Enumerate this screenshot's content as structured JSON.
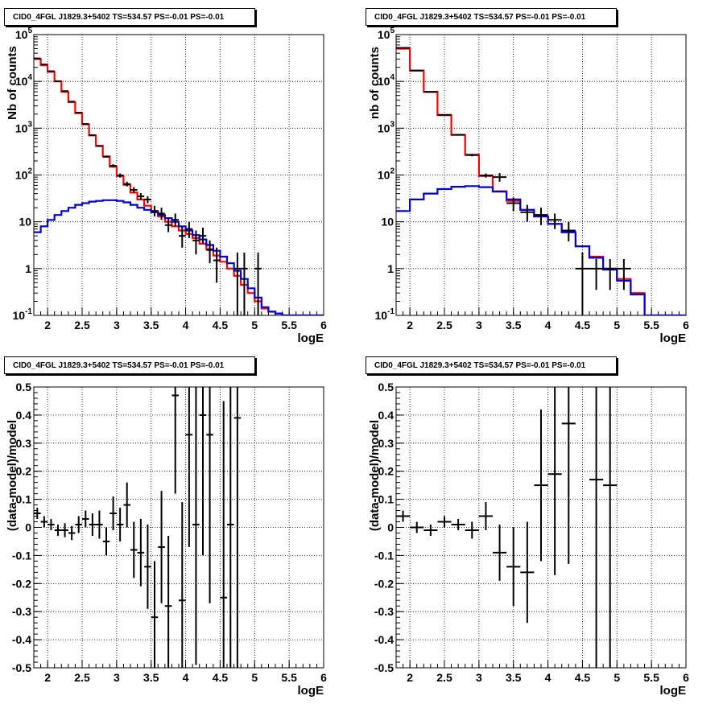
{
  "chart_data": [
    {
      "type": "line",
      "title": "CID0_4FGL J1829.3+5402 TS=534.57 PS=-0.01 PS=-0.01",
      "xlabel": "logE",
      "ylabel": "Nb of counts",
      "xlim": [
        1.8,
        6.0
      ],
      "ylim": [
        0.1,
        100000
      ],
      "yscale": "log",
      "grid": true,
      "xticks": [
        "2",
        "2.5",
        "3",
        "3.5",
        "4",
        "4.5",
        "5",
        "5.5",
        "6"
      ],
      "yticks": [
        "10^-1",
        "1",
        "10",
        "10^2",
        "10^3",
        "10^4",
        "10^5"
      ],
      "bin_width": 0.1,
      "series": [
        {
          "color": "#ff0000",
          "style": "step",
          "x": [
            1.85,
            1.95,
            2.05,
            2.15,
            2.25,
            2.35,
            2.45,
            2.55,
            2.65,
            2.75,
            2.85,
            2.95,
            3.05,
            3.15,
            3.25,
            3.35,
            3.45,
            3.55,
            3.65,
            3.75,
            3.85,
            3.95,
            4.05,
            4.15,
            4.25,
            4.35,
            4.45,
            4.55,
            4.65,
            4.75,
            4.85,
            4.95,
            5.05,
            5.15,
            5.25,
            5.35,
            5.45,
            5.55,
            5.65,
            5.75,
            5.85,
            5.95
          ],
          "y": [
            30000,
            22000,
            16000,
            10000,
            6000,
            3600,
            2100,
            1200,
            700,
            420,
            250,
            150,
            95,
            62,
            42,
            30,
            22,
            17,
            13,
            10,
            8,
            6.5,
            5.5,
            4.5,
            3.4,
            2.6,
            1.9,
            1.4,
            1.0,
            0.7,
            0.45,
            0.3,
            0.2,
            0.14,
            0.12,
            0.11,
            0.1,
            0.1,
            0.1,
            0.1,
            0.1,
            0.1
          ]
        },
        {
          "color": "#0000cc",
          "style": "step",
          "x": [
            1.85,
            1.95,
            2.05,
            2.15,
            2.25,
            2.35,
            2.45,
            2.55,
            2.65,
            2.75,
            2.85,
            2.95,
            3.05,
            3.15,
            3.25,
            3.35,
            3.45,
            3.55,
            3.65,
            3.75,
            3.85,
            3.95,
            4.05,
            4.15,
            4.25,
            4.35,
            4.45,
            4.55,
            4.65,
            4.75,
            4.85,
            4.95,
            5.05,
            5.15,
            5.25,
            5.35,
            5.45,
            5.55,
            5.65,
            5.75,
            5.85,
            5.95
          ],
          "y": [
            6,
            8,
            11,
            14,
            17,
            20,
            23,
            25,
            27,
            28,
            29,
            29,
            28,
            26,
            23,
            20,
            18,
            16,
            14,
            12,
            10,
            8,
            6.5,
            5.2,
            4.2,
            3.2,
            2.4,
            1.8,
            1.3,
            0.9,
            0.6,
            0.38,
            0.24,
            0.15,
            0.12,
            0.11,
            0.1,
            0.1,
            0.1,
            0.1,
            0.1,
            0.1
          ]
        }
      ],
      "data_points": {
        "x": [
          1.85,
          1.95,
          2.05,
          2.15,
          2.25,
          2.35,
          2.45,
          2.55,
          2.65,
          2.75,
          2.85,
          2.95,
          3.05,
          3.15,
          3.25,
          3.35,
          3.45,
          3.55,
          3.65,
          3.75,
          3.85,
          3.95,
          4.05,
          4.15,
          4.25,
          4.35,
          4.45,
          4.75,
          4.85,
          5.05
        ],
        "y": [
          31000,
          23000,
          16500,
          10100,
          6200,
          3700,
          2150,
          1230,
          710,
          415,
          245,
          157,
          98,
          64,
          48,
          35,
          30,
          17,
          15,
          8.5,
          11,
          5,
          7,
          4,
          5,
          2.5,
          1.5,
          1,
          1,
          1
        ],
        "ylo": [
          30500,
          22700,
          16300,
          10000,
          6100,
          3640,
          2100,
          1200,
          690,
          400,
          234,
          145,
          88,
          57,
          42,
          30,
          25,
          13,
          11,
          6,
          8,
          2.8,
          4.5,
          2,
          3.4,
          1.3,
          0.5,
          0.1,
          0.1,
          0.1
        ],
        "yhi": [
          31500,
          23300,
          16700,
          10200,
          6300,
          3760,
          2200,
          1260,
          730,
          430,
          256,
          170,
          108,
          72,
          55,
          41,
          35,
          22,
          20,
          12,
          15,
          8,
          10,
          6.5,
          7.5,
          4,
          2.8,
          2.2,
          2.2,
          2.2
        ]
      }
    },
    {
      "type": "line",
      "title": "CID0_4FGL J1829.3+5402 TS=534.57 PS=-0.01 PS=-0.01",
      "xlabel": "logE",
      "ylabel": "nb of counts",
      "xlim": [
        1.8,
        6.0
      ],
      "ylim": [
        0.1,
        100000
      ],
      "yscale": "log",
      "grid": true,
      "xticks": [
        "2",
        "2.5",
        "3",
        "3.5",
        "4",
        "4.5",
        "5",
        "5.5",
        "6"
      ],
      "yticks": [
        "10^-1",
        "1",
        "10",
        "10^2",
        "10^3",
        "10^4",
        "10^5"
      ],
      "bin_width": 0.2,
      "series": [
        {
          "color": "#ff0000",
          "style": "step",
          "x": [
            1.9,
            2.1,
            2.3,
            2.5,
            2.7,
            2.9,
            3.1,
            3.3,
            3.5,
            3.7,
            3.9,
            4.1,
            4.3,
            4.5,
            4.7,
            4.9,
            5.1,
            5.3,
            5.5,
            5.7,
            5.9
          ],
          "y": [
            50000,
            17000,
            6000,
            1900,
            720,
            270,
            95,
            45,
            28,
            18,
            13,
            9,
            6,
            3,
            1.8,
            1.0,
            0.6,
            0.3,
            0.1,
            0.1,
            0.1
          ]
        },
        {
          "color": "#0000cc",
          "style": "step",
          "x": [
            1.9,
            2.1,
            2.3,
            2.5,
            2.7,
            2.9,
            3.1,
            3.3,
            3.5,
            3.7,
            3.9,
            4.1,
            4.3,
            4.5,
            4.7,
            4.9,
            5.1,
            5.3,
            5.5,
            5.7,
            5.9
          ],
          "y": [
            17,
            30,
            40,
            50,
            56,
            58,
            55,
            44,
            30,
            18,
            13,
            9,
            6,
            3,
            1.7,
            0.95,
            0.55,
            0.28,
            0.1,
            0.1,
            0.1
          ]
        }
      ],
      "data_points": {
        "x": [
          1.9,
          2.1,
          2.3,
          2.5,
          2.7,
          2.9,
          3.1,
          3.3,
          3.5,
          3.7,
          3.9,
          4.1,
          4.3,
          4.5,
          4.7,
          4.9,
          5.1
        ],
        "y": [
          52000,
          17100,
          5950,
          1930,
          725,
          266,
          98,
          90,
          25,
          16,
          14,
          11,
          6.5,
          1,
          1,
          1,
          1
        ],
        "ylo": [
          51700,
          16900,
          5850,
          1890,
          700,
          250,
          88,
          72,
          17,
          10,
          8.5,
          7,
          3.8,
          0.1,
          0.35,
          0.35,
          0.35
        ],
        "yhi": [
          52300,
          17300,
          6050,
          1970,
          750,
          282,
          108,
          110,
          33,
          23,
          20,
          15,
          10,
          2.2,
          1.6,
          1.6,
          1.6
        ]
      }
    },
    {
      "type": "scatter",
      "title": "CID0_4FGL J1829.3+5402 TS=534.57 PS=-0.01 PS=-0.01",
      "xlabel": "logE",
      "ylabel": "(data-model)/model",
      "xlim": [
        1.8,
        6.0
      ],
      "ylim": [
        -0.5,
        0.5
      ],
      "grid": true,
      "xticks": [
        "2",
        "2.5",
        "3",
        "3.5",
        "4",
        "4.5",
        "5",
        "5.5",
        "6"
      ],
      "yticks": [
        "-0.5",
        "-0.4",
        "-0.3",
        "-0.2",
        "-0.1",
        "0",
        "0.1",
        "0.2",
        "0.3",
        "0.4",
        "0.5"
      ],
      "bin_width": 0.1,
      "data_points": {
        "x": [
          1.85,
          1.95,
          2.05,
          2.15,
          2.25,
          2.35,
          2.45,
          2.55,
          2.65,
          2.75,
          2.85,
          2.95,
          3.05,
          3.15,
          3.25,
          3.35,
          3.45,
          3.55,
          3.65,
          3.75,
          3.85,
          3.95,
          4.05,
          4.15,
          4.25,
          4.35,
          4.55,
          4.65,
          4.75
        ],
        "y": [
          0.05,
          0.02,
          0.01,
          -0.01,
          -0.01,
          -0.02,
          0.01,
          0.03,
          0.01,
          0.01,
          -0.05,
          0.05,
          0.01,
          0.08,
          -0.08,
          -0.09,
          -0.14,
          -0.32,
          -0.07,
          -0.28,
          0.47,
          -0.26,
          0.33,
          0.01,
          0.4,
          0.33,
          -0.25,
          0.01,
          0.39
        ],
        "err": [
          0.02,
          0.02,
          0.02,
          0.02,
          0.025,
          0.025,
          0.03,
          0.03,
          0.04,
          0.05,
          0.05,
          0.06,
          0.06,
          0.08,
          0.1,
          0.12,
          0.15,
          0.2,
          0.2,
          0.25,
          0.35,
          0.35,
          0.4,
          0.5,
          0.5,
          0.6,
          0.7,
          0.8,
          0.9
        ]
      }
    },
    {
      "type": "scatter",
      "title": "CID0_4FGL J1829.3+5402 TS=534.57 PS=-0.01 PS=-0.01",
      "xlabel": "logE",
      "ylabel": "(data-model)/model",
      "xlim": [
        1.8,
        6.0
      ],
      "ylim": [
        -0.5,
        0.5
      ],
      "grid": true,
      "xticks": [
        "2",
        "2.5",
        "3",
        "3.5",
        "4",
        "4.5",
        "5",
        "5.5",
        "6"
      ],
      "yticks": [
        "-0.5",
        "-0.4",
        "-0.3",
        "-0.2",
        "-0.1",
        "0",
        "0.1",
        "0.2",
        "0.3",
        "0.4",
        "0.5"
      ],
      "bin_width": 0.2,
      "data_points": {
        "x": [
          1.9,
          2.1,
          2.3,
          2.5,
          2.7,
          2.9,
          3.1,
          3.3,
          3.5,
          3.7,
          3.9,
          4.1,
          4.3,
          4.7,
          4.9
        ],
        "y": [
          0.04,
          0.0,
          -0.01,
          0.02,
          0.01,
          -0.01,
          0.04,
          -0.09,
          -0.14,
          -0.16,
          0.15,
          0.19,
          0.37,
          0.17,
          0.15
        ],
        "err": [
          0.02,
          0.02,
          0.02,
          0.02,
          0.02,
          0.03,
          0.05,
          0.1,
          0.14,
          0.18,
          0.27,
          0.36,
          0.5,
          0.9,
          0.95
        ]
      }
    }
  ]
}
